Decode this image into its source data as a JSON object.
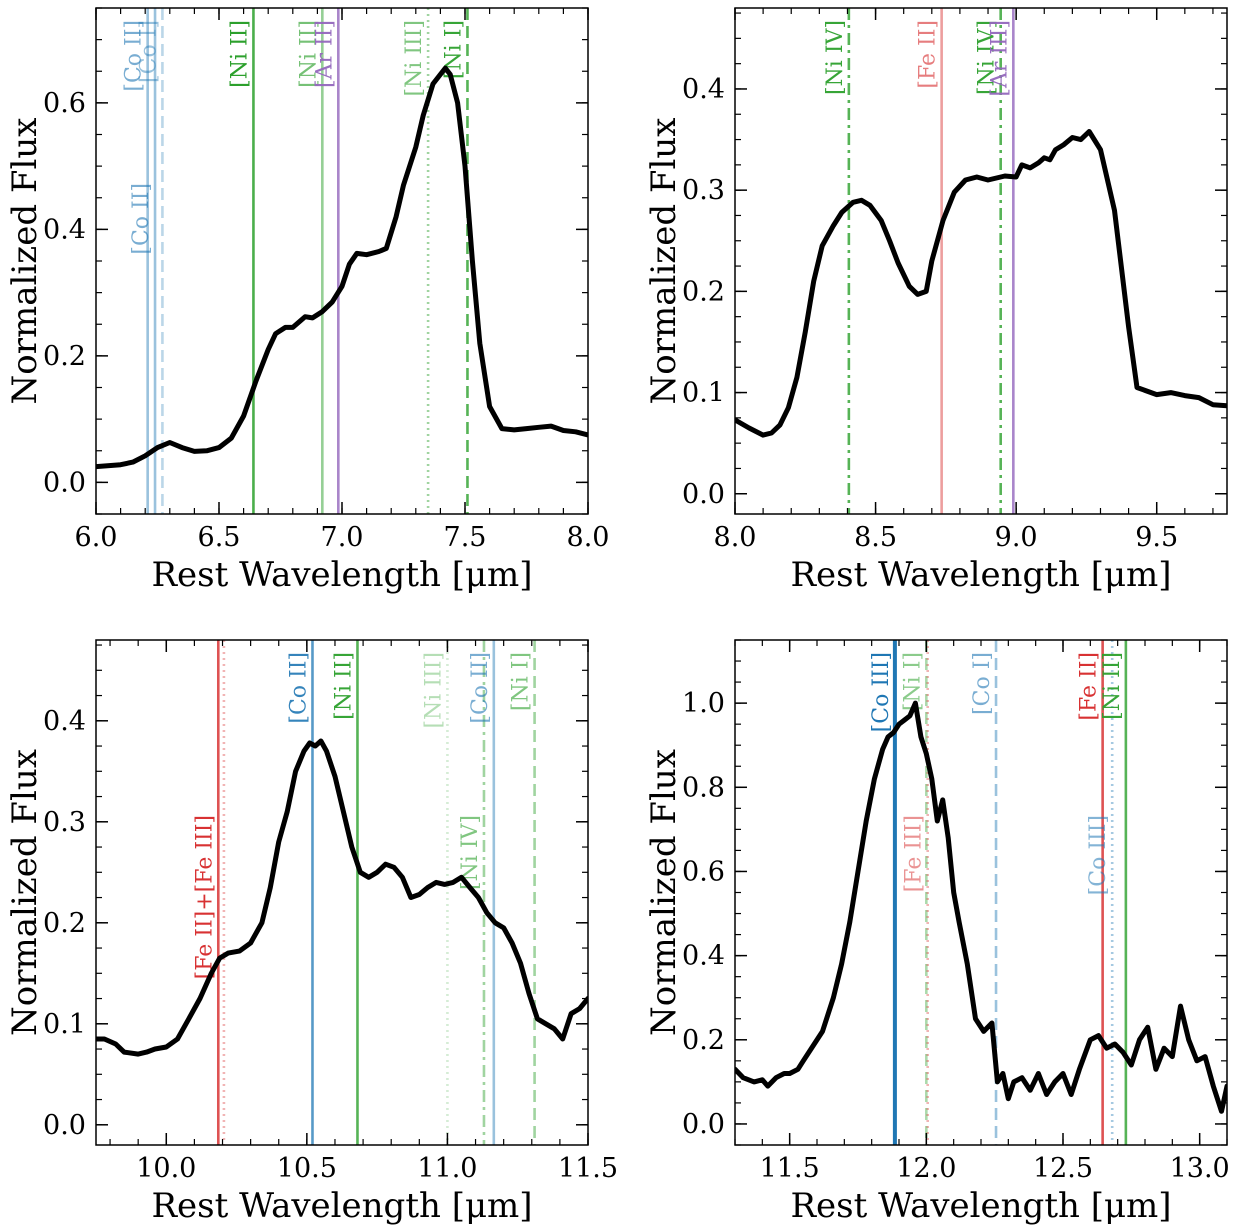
{
  "chart_data": [
    {
      "type": "line",
      "panel": "top-left",
      "xlabel": "Rest Wavelength [μm]",
      "ylabel": "Normalized Flux",
      "xlim": [
        6.0,
        8.0
      ],
      "ylim": [
        -0.05,
        0.75
      ],
      "xticks": [
        6.0,
        6.5,
        7.0,
        7.5,
        8.0
      ],
      "xtick_labels": [
        "6.0",
        "6.5",
        "7.0",
        "7.5",
        "8.0"
      ],
      "yticks": [
        0.0,
        0.2,
        0.4,
        0.6
      ],
      "ytick_labels": [
        "0.0",
        "0.2",
        "0.4",
        "0.6"
      ],
      "x_minor_step": 0.1,
      "y_minor_step": 0.05,
      "spectrum": {
        "x": [
          6.0,
          6.1,
          6.15,
          6.2,
          6.25,
          6.3,
          6.35,
          6.4,
          6.45,
          6.5,
          6.55,
          6.6,
          6.65,
          6.7,
          6.73,
          6.77,
          6.8,
          6.85,
          6.88,
          6.92,
          6.96,
          7.0,
          7.03,
          7.06,
          7.1,
          7.15,
          7.18,
          7.22,
          7.25,
          7.3,
          7.33,
          7.37,
          7.4,
          7.42,
          7.44,
          7.47,
          7.5,
          7.53,
          7.56,
          7.6,
          7.65,
          7.7,
          7.75,
          7.8,
          7.85,
          7.9,
          7.95,
          8.0
        ],
        "y": [
          0.025,
          0.028,
          0.032,
          0.042,
          0.055,
          0.063,
          0.055,
          0.049,
          0.05,
          0.055,
          0.07,
          0.105,
          0.16,
          0.21,
          0.235,
          0.245,
          0.245,
          0.262,
          0.26,
          0.27,
          0.285,
          0.31,
          0.345,
          0.362,
          0.36,
          0.365,
          0.37,
          0.42,
          0.47,
          0.53,
          0.58,
          0.63,
          0.645,
          0.655,
          0.645,
          0.6,
          0.5,
          0.35,
          0.22,
          0.12,
          0.085,
          0.083,
          0.085,
          0.087,
          0.089,
          0.082,
          0.08,
          0.075
        ]
      },
      "lines": [
        {
          "x": 6.21,
          "label": "[Co II]",
          "color": "#1f77b4",
          "opacity": 0.45,
          "style": "solid",
          "label_pos": "upper"
        },
        {
          "x": 6.24,
          "label": "[Co II]",
          "color": "#1f77b4",
          "opacity": 0.45,
          "style": "solid",
          "label_pos": "lower"
        },
        {
          "x": 6.27,
          "label": "[Co I]",
          "color": "#1f77b4",
          "opacity": 0.3,
          "style": "dashed",
          "label_pos": "upper"
        },
        {
          "x": 6.64,
          "label": "[Ni II]",
          "color": "#2ca02c",
          "opacity": 0.85,
          "style": "solid",
          "label_pos": "upper"
        },
        {
          "x": 6.92,
          "label": "[Ni II]",
          "color": "#2ca02c",
          "opacity": 0.5,
          "style": "solid",
          "label_pos": "upper"
        },
        {
          "x": 6.985,
          "label": "[Ar II]",
          "color": "#9467bd",
          "opacity": 0.8,
          "style": "solid",
          "label_pos": "upper"
        },
        {
          "x": 7.35,
          "label": "[Ni III]",
          "color": "#2ca02c",
          "opacity": 0.45,
          "style": "dotted",
          "label_pos": "upper"
        },
        {
          "x": 7.51,
          "label": "[Ni I]",
          "color": "#2ca02c",
          "opacity": 0.8,
          "style": "dashed",
          "label_pos": "upper"
        }
      ]
    },
    {
      "type": "line",
      "panel": "top-right",
      "xlabel": "Rest Wavelength [μm]",
      "ylabel": "Normalized Flux",
      "xlim": [
        8.0,
        9.75
      ],
      "ylim": [
        -0.02,
        0.48
      ],
      "xticks": [
        8.0,
        8.5,
        9.0,
        9.5
      ],
      "xtick_labels": [
        "8.0",
        "8.5",
        "9.0",
        "9.5"
      ],
      "yticks": [
        0.0,
        0.1,
        0.2,
        0.3,
        0.4
      ],
      "ytick_labels": [
        "0.0",
        "0.1",
        "0.2",
        "0.3",
        "0.4"
      ],
      "x_minor_step": 0.1,
      "y_minor_step": 0.025,
      "spectrum": {
        "x": [
          8.0,
          8.05,
          8.1,
          8.13,
          8.16,
          8.19,
          8.22,
          8.25,
          8.28,
          8.31,
          8.35,
          8.38,
          8.42,
          8.45,
          8.48,
          8.52,
          8.55,
          8.58,
          8.62,
          8.65,
          8.68,
          8.7,
          8.74,
          8.78,
          8.82,
          8.86,
          8.9,
          8.93,
          8.96,
          9.0,
          9.02,
          9.05,
          9.08,
          9.1,
          9.12,
          9.14,
          9.17,
          9.2,
          9.23,
          9.26,
          9.3,
          9.35,
          9.4,
          9.43,
          9.5,
          9.55,
          9.6,
          9.65,
          9.7,
          9.75
        ],
        "y": [
          0.073,
          0.065,
          0.058,
          0.06,
          0.068,
          0.085,
          0.115,
          0.16,
          0.21,
          0.245,
          0.265,
          0.278,
          0.288,
          0.29,
          0.285,
          0.27,
          0.25,
          0.228,
          0.205,
          0.197,
          0.2,
          0.23,
          0.27,
          0.298,
          0.31,
          0.313,
          0.31,
          0.312,
          0.314,
          0.313,
          0.325,
          0.322,
          0.327,
          0.332,
          0.33,
          0.34,
          0.345,
          0.352,
          0.35,
          0.358,
          0.34,
          0.28,
          0.165,
          0.105,
          0.098,
          0.1,
          0.097,
          0.095,
          0.088,
          0.087
        ]
      },
      "lines": [
        {
          "x": 8.405,
          "label": "[Ni IV]",
          "color": "#2ca02c",
          "opacity": 0.8,
          "style": "dashdot",
          "label_pos": "upper"
        },
        {
          "x": 8.735,
          "label": "[Fe II]",
          "color": "#d62728",
          "opacity": 0.45,
          "style": "solid",
          "label_pos": "upper"
        },
        {
          "x": 8.945,
          "label": "[Ni IV]",
          "color": "#2ca02c",
          "opacity": 0.8,
          "style": "dashdot",
          "label_pos": "upper"
        },
        {
          "x": 8.99,
          "label": "[Ar III]",
          "color": "#9467bd",
          "opacity": 0.8,
          "style": "solid",
          "label_pos": "upper"
        }
      ]
    },
    {
      "type": "line",
      "panel": "bottom-left",
      "xlabel": "Rest Wavelength [μm]",
      "ylabel": "Normalized Flux",
      "xlim": [
        9.75,
        11.5
      ],
      "ylim": [
        -0.02,
        0.48
      ],
      "xticks": [
        10.0,
        10.5,
        11.0,
        11.5
      ],
      "xtick_labels": [
        "10.0",
        "10.5",
        "11.0",
        "11.5"
      ],
      "yticks": [
        0.0,
        0.1,
        0.2,
        0.3,
        0.4
      ],
      "ytick_labels": [
        "0.0",
        "0.1",
        "0.2",
        "0.3",
        "0.4"
      ],
      "x_minor_step": 0.1,
      "y_minor_step": 0.025,
      "spectrum": {
        "x": [
          9.75,
          9.78,
          9.82,
          9.85,
          9.9,
          9.93,
          9.96,
          10.0,
          10.04,
          10.08,
          10.12,
          10.16,
          10.19,
          10.22,
          10.26,
          10.3,
          10.34,
          10.37,
          10.4,
          10.43,
          10.46,
          10.49,
          10.51,
          10.53,
          10.55,
          10.57,
          10.6,
          10.63,
          10.66,
          10.69,
          10.72,
          10.75,
          10.78,
          10.81,
          10.84,
          10.87,
          10.9,
          10.93,
          10.96,
          10.99,
          11.02,
          11.05,
          11.08,
          11.11,
          11.14,
          11.17,
          11.2,
          11.23,
          11.26,
          11.29,
          11.32,
          11.35,
          11.38,
          11.41,
          11.44,
          11.47,
          11.5
        ],
        "y": [
          0.085,
          0.085,
          0.08,
          0.072,
          0.07,
          0.072,
          0.075,
          0.077,
          0.085,
          0.105,
          0.125,
          0.15,
          0.165,
          0.17,
          0.172,
          0.18,
          0.2,
          0.235,
          0.28,
          0.31,
          0.35,
          0.37,
          0.378,
          0.375,
          0.38,
          0.37,
          0.345,
          0.31,
          0.275,
          0.25,
          0.245,
          0.25,
          0.258,
          0.255,
          0.245,
          0.225,
          0.228,
          0.235,
          0.24,
          0.238,
          0.24,
          0.245,
          0.235,
          0.225,
          0.21,
          0.2,
          0.195,
          0.18,
          0.16,
          0.13,
          0.105,
          0.1,
          0.095,
          0.085,
          0.11,
          0.115,
          0.125
        ]
      },
      "lines": [
        {
          "x": 10.185,
          "label": "[Fe II]+[Fe III]",
          "color": "#d62728",
          "opacity": 0.8,
          "style": "solid",
          "label_pos": "lower"
        },
        {
          "x": 10.205,
          "label": "",
          "color": "#d62728",
          "opacity": 0.35,
          "style": "dotted",
          "label_pos": "none"
        },
        {
          "x": 10.52,
          "label": "[Co II]",
          "color": "#1f77b4",
          "opacity": 0.75,
          "style": "solid",
          "label_pos": "upper"
        },
        {
          "x": 10.68,
          "label": "[Ni II]",
          "color": "#2ca02c",
          "opacity": 0.8,
          "style": "solid",
          "label_pos": "upper"
        },
        {
          "x": 11.0,
          "label": "[Ni III]",
          "color": "#2ca02c",
          "opacity": 0.2,
          "style": "dotted",
          "label_pos": "upper"
        },
        {
          "x": 11.13,
          "label": "[Ni IV]",
          "color": "#2ca02c",
          "opacity": 0.45,
          "style": "dashdot",
          "label_pos": "lower"
        },
        {
          "x": 11.165,
          "label": "[Co II]",
          "color": "#1f77b4",
          "opacity": 0.45,
          "style": "solid",
          "label_pos": "upper"
        },
        {
          "x": 11.31,
          "label": "[Ni I]",
          "color": "#2ca02c",
          "opacity": 0.45,
          "style": "dashed",
          "label_pos": "upper"
        }
      ]
    },
    {
      "type": "line",
      "panel": "bottom-right",
      "xlabel": "Rest Wavelength [μm]",
      "ylabel": "Normalized Flux",
      "xlim": [
        11.3,
        13.1
      ],
      "ylim": [
        -0.05,
        1.15
      ],
      "xticks": [
        11.5,
        12.0,
        12.5,
        13.0
      ],
      "xtick_labels": [
        "11.5",
        "12.0",
        "12.5",
        "13.0"
      ],
      "yticks": [
        0.0,
        0.2,
        0.4,
        0.6,
        0.8,
        1.0
      ],
      "ytick_labels": [
        "0.0",
        "0.2",
        "0.4",
        "0.6",
        "0.8",
        "1.0"
      ],
      "x_minor_step": 0.1,
      "y_minor_step": 0.05,
      "spectrum": {
        "x": [
          11.3,
          11.33,
          11.37,
          11.4,
          11.42,
          11.45,
          11.48,
          11.5,
          11.53,
          11.55,
          11.58,
          11.62,
          11.66,
          11.69,
          11.72,
          11.75,
          11.78,
          11.81,
          11.84,
          11.86,
          11.88,
          11.9,
          11.92,
          11.94,
          11.96,
          11.98,
          12.0,
          12.02,
          12.04,
          12.06,
          12.08,
          12.1,
          12.12,
          12.15,
          12.18,
          12.21,
          12.24,
          12.26,
          12.28,
          12.3,
          12.32,
          12.35,
          12.38,
          12.41,
          12.44,
          12.47,
          12.5,
          12.53,
          12.56,
          12.6,
          12.63,
          12.66,
          12.69,
          12.72,
          12.75,
          12.78,
          12.81,
          12.84,
          12.87,
          12.9,
          12.93,
          12.96,
          12.99,
          13.02,
          13.05,
          13.08,
          13.1
        ],
        "y": [
          0.13,
          0.11,
          0.1,
          0.105,
          0.09,
          0.11,
          0.12,
          0.12,
          0.13,
          0.15,
          0.18,
          0.22,
          0.3,
          0.38,
          0.48,
          0.6,
          0.72,
          0.82,
          0.89,
          0.92,
          0.93,
          0.95,
          0.96,
          0.97,
          1.0,
          0.92,
          0.88,
          0.82,
          0.72,
          0.77,
          0.68,
          0.55,
          0.48,
          0.38,
          0.25,
          0.22,
          0.24,
          0.1,
          0.12,
          0.06,
          0.1,
          0.11,
          0.08,
          0.12,
          0.07,
          0.1,
          0.12,
          0.07,
          0.13,
          0.2,
          0.21,
          0.18,
          0.19,
          0.17,
          0.14,
          0.2,
          0.23,
          0.13,
          0.18,
          0.16,
          0.28,
          0.2,
          0.15,
          0.16,
          0.09,
          0.03,
          0.09
        ]
      },
      "lines": [
        {
          "x": 11.885,
          "label": "[Co III]",
          "color": "#1f77b4",
          "opacity": 1.0,
          "style": "solid",
          "label_pos": "upper",
          "width": 4
        },
        {
          "x": 12.0,
          "label": "[Ni I]",
          "color": "#2ca02c",
          "opacity": 0.4,
          "style": "dashed",
          "label_pos": "upper"
        },
        {
          "x": 12.005,
          "label": "[Fe III]",
          "color": "#d62728",
          "opacity": 0.35,
          "style": "dotted",
          "label_pos": "lower"
        },
        {
          "x": 12.255,
          "label": "[Co I]",
          "color": "#1f77b4",
          "opacity": 0.45,
          "style": "dashed",
          "label_pos": "upper"
        },
        {
          "x": 12.645,
          "label": "[Fe II]",
          "color": "#d62728",
          "opacity": 0.8,
          "style": "solid",
          "label_pos": "upper"
        },
        {
          "x": 12.68,
          "label": "[Co III]",
          "color": "#1f77b4",
          "opacity": 0.4,
          "style": "dotted",
          "label_pos": "lower"
        },
        {
          "x": 12.73,
          "label": "[Ni II]",
          "color": "#2ca02c",
          "opacity": 0.8,
          "style": "solid",
          "label_pos": "upper"
        }
      ]
    }
  ]
}
